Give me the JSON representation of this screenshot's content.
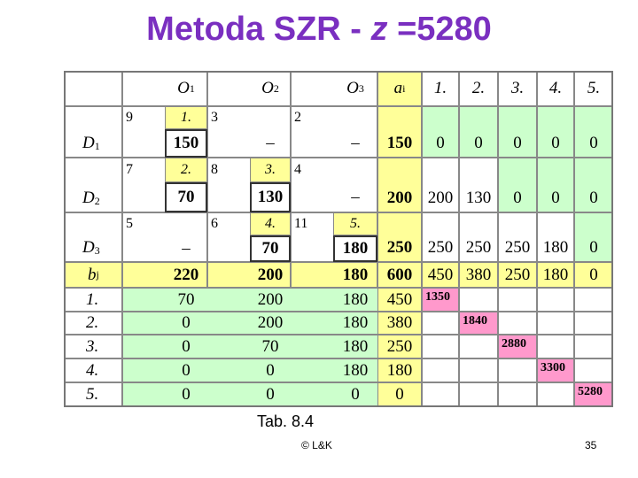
{
  "title": {
    "text_before": "Metoda SZR -",
    "variable": "z",
    "text_after": "=5280"
  },
  "table": {
    "header": {
      "columns": [
        {
          "base": "O",
          "sub": "1"
        },
        {
          "base": "O",
          "sub": "2"
        },
        {
          "base": "O",
          "sub": "3"
        }
      ],
      "supply": {
        "base": "a",
        "sub": "i"
      },
      "steps": [
        "1.",
        "2.",
        "3.",
        "4.",
        "5."
      ]
    },
    "rows": [
      {
        "label": {
          "base": "D",
          "sub": "1"
        },
        "cells": [
          {
            "cost": 9,
            "order": "1.",
            "amount": 150
          },
          {
            "cost": 3,
            "amount": "–"
          },
          {
            "cost": 2,
            "amount": "–"
          }
        ],
        "supply": 150,
        "steps": [
          0,
          0,
          0,
          0,
          0
        ]
      },
      {
        "label": {
          "base": "D",
          "sub": "2"
        },
        "cells": [
          {
            "cost": 7,
            "order": "2.",
            "amount": 70
          },
          {
            "cost": 8,
            "order": "3.",
            "amount": 130
          },
          {
            "cost": 4,
            "amount": "–"
          }
        ],
        "supply": 200,
        "steps": [
          200,
          130,
          0,
          0,
          0
        ]
      },
      {
        "label": {
          "base": "D",
          "sub": "3"
        },
        "cells": [
          {
            "cost": 5,
            "amount": "–"
          },
          {
            "cost": 6,
            "order": "4.",
            "amount": 70
          },
          {
            "cost": 11,
            "order": "5.",
            "amount": 180
          }
        ],
        "supply": 250,
        "steps": [
          250,
          250,
          250,
          180,
          0
        ]
      }
    ],
    "demand": {
      "label": {
        "base": "b",
        "sub": "j"
      },
      "values": [
        220,
        200,
        180
      ],
      "total": 600,
      "steps": [
        450,
        380,
        250,
        180,
        0
      ]
    },
    "step_rows": [
      {
        "label": "1.",
        "values": [
          70,
          200,
          180
        ],
        "total": 450,
        "z": 1350
      },
      {
        "label": "2.",
        "values": [
          0,
          200,
          180
        ],
        "total": 380,
        "z": 1840
      },
      {
        "label": "3.",
        "values": [
          0,
          70,
          180
        ],
        "total": 250,
        "z": 2880
      },
      {
        "label": "4.",
        "values": [
          0,
          0,
          180
        ],
        "total": 180,
        "z": 3300
      },
      {
        "label": "5.",
        "values": [
          0,
          0,
          0
        ],
        "total": 0,
        "z": 5280
      }
    ]
  },
  "caption": "Tab. 8.4",
  "footer": {
    "copyright": "© L&K",
    "page": "35"
  }
}
